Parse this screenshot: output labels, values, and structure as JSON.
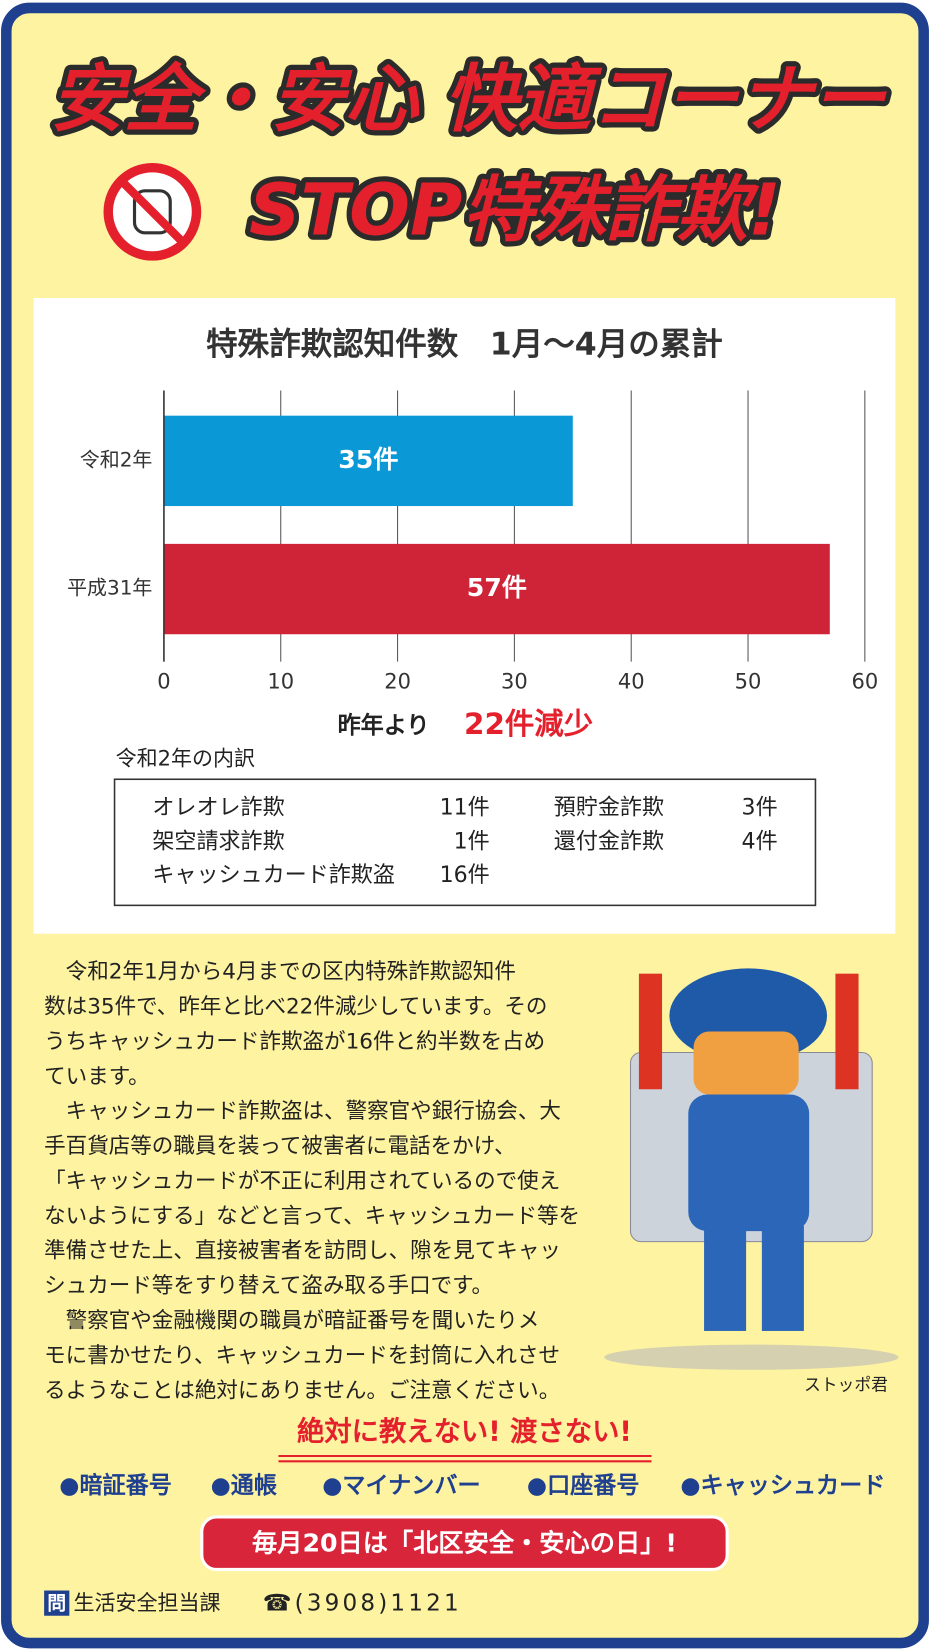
{
  "header": {
    "title": "安全・安心 快適コーナー",
    "subtitle": "STOP特殊詐欺!"
  },
  "chart_data": {
    "type": "bar",
    "orientation": "horizontal",
    "title": "特殊詐欺認知件数　1月～4月の累計",
    "categories": [
      "令和2年",
      "平成31年"
    ],
    "values": [
      35,
      57
    ],
    "value_labels": [
      "35件",
      "57件"
    ],
    "colors": [
      "#0a98d6",
      "#cf2438"
    ],
    "xlim": [
      0,
      60
    ],
    "xticks": [
      0,
      10,
      20,
      30,
      40,
      50,
      60
    ],
    "grid": true
  },
  "comparison": {
    "label": "昨年より",
    "value": "22件減少"
  },
  "breakdown": {
    "title": "令和2年の内訳",
    "items": [
      {
        "name": "オレオレ詐欺",
        "count": "11件"
      },
      {
        "name": "預貯金詐欺",
        "count": "3件"
      },
      {
        "name": "架空請求詐欺",
        "count": "1件"
      },
      {
        "name": "還付金詐欺",
        "count": "4件"
      },
      {
        "name": "キャッシュカード詐欺盗",
        "count": "16件"
      }
    ]
  },
  "body": {
    "lines": [
      "　令和2年1月から4月までの区内特殊詐欺認知件",
      "数は35件で、昨年と比べ22件減少しています。その",
      "うちキャッシュカード詐欺盗が16件と約半数を占め",
      "ています。",
      "　キャッシュカード詐欺盗は、警察官や銀行協会、大",
      "手百貨店等の職員を装って被害者に電話をかけ、",
      "「キャッシュカードが不正に利用されているので使え",
      "ないようにする」などと言って、キャッシュカード等を",
      "準備させた上、直接被害者を訪問し、隙を見てキャッ",
      "シュカード等をすり替えて盗み取る手口です。",
      "　警察官や金融機関の職員が暗証番号を聞いたりメ",
      "モに書かせたり、キャッシュカードを封筒に入れさせ",
      "るようなことは絶対にありません。ご注意ください。"
    ]
  },
  "character_caption": "ストッポ君",
  "warning": "絶対に教えない! 渡さない!",
  "items": [
    "●暗証番号",
    "●通帳",
    "●マイナンバー",
    "●口座番号",
    "●キャッシュカード"
  ],
  "banner": "毎月20日は「北区安全・安心の日」!",
  "contact": {
    "icon": "問",
    "department": "生活安全担当課",
    "phone": "☎(3908)1121"
  }
}
